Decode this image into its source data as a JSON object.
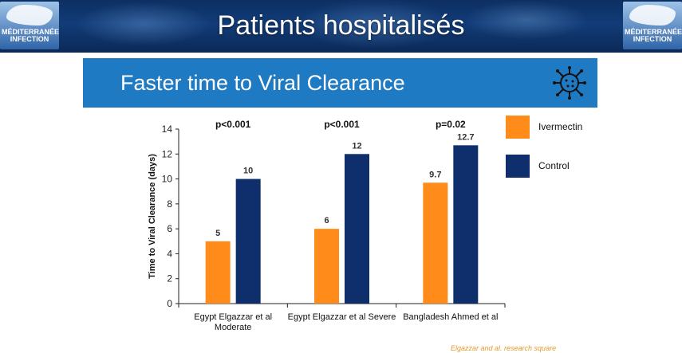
{
  "banner": {
    "title": "Patients hospitalisés",
    "logo_line1": "MÉDITERRANÉE",
    "logo_line2": "INFECTION"
  },
  "slide": {
    "title": "Faster time to Viral Clearance",
    "icon": "virus-icon"
  },
  "chart_data": {
    "type": "bar",
    "ylabel": "Time to Viral Clearance (days)",
    "ylim": [
      0,
      14
    ],
    "yticks": [
      0,
      2,
      4,
      6,
      8,
      10,
      12,
      14
    ],
    "categories": [
      [
        "Egypt Elgazzar et al",
        "Moderate"
      ],
      [
        "Egypt Elgazzar et al Severe"
      ],
      [
        "Bangladesh Ahmed et al"
      ]
    ],
    "pvalues": [
      "p<0.001",
      "p<0.001",
      "p=0.02"
    ],
    "series": [
      {
        "name": "Ivermectin",
        "color": "#ff8c1a",
        "values": [
          5,
          6,
          9.7
        ],
        "labels": [
          "5",
          "6",
          "9.7"
        ]
      },
      {
        "name": "Control",
        "color": "#0e2f6b",
        "values": [
          10,
          12,
          12.7
        ],
        "labels": [
          "10",
          "12",
          "12.7"
        ]
      }
    ],
    "legend_position": "right",
    "grid": false
  },
  "source": "Elgazzar and al. research square"
}
